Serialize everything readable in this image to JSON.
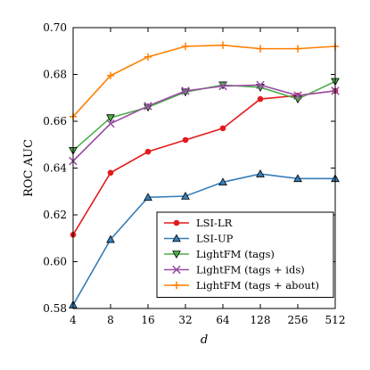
{
  "chart_data": {
    "type": "line",
    "title": "",
    "xlabel": "d",
    "ylabel": "ROC AUC",
    "x": [
      4,
      8,
      16,
      32,
      64,
      128,
      256,
      512
    ],
    "xscale": "log2",
    "xlim": [
      4,
      512
    ],
    "ylim": [
      0.58,
      0.7
    ],
    "yticks": [
      "0.58",
      "0.60",
      "0.62",
      "0.64",
      "0.66",
      "0.68",
      "0.70"
    ],
    "xticks": [
      "4",
      "8",
      "16",
      "32",
      "64",
      "128",
      "256",
      "512"
    ],
    "grid": false,
    "legend_position": "lower-right",
    "series": [
      {
        "name": "LSI-LR",
        "color": "#e41a1c",
        "marker": "circle",
        "values": [
          0.6115,
          0.638,
          0.647,
          0.652,
          0.657,
          0.6695,
          0.671,
          0.673
        ]
      },
      {
        "name": "LSI-UP",
        "color": "#377eb8",
        "marker": "triangle-up",
        "values": [
          0.5815,
          0.6095,
          0.6275,
          0.628,
          0.634,
          0.6375,
          0.6355,
          0.6355
        ]
      },
      {
        "name": "LightFM (tags)",
        "color": "#4daf4a",
        "marker": "triangle-down",
        "values": [
          0.6475,
          0.6615,
          0.666,
          0.6725,
          0.6755,
          0.6745,
          0.6695,
          0.677
        ]
      },
      {
        "name": "LightFM (tags + ids)",
        "color": "#984ea3",
        "marker": "x",
        "values": [
          0.643,
          0.659,
          0.6665,
          0.673,
          0.675,
          0.6755,
          0.671,
          0.673
        ]
      },
      {
        "name": "LightFM (tags + about)",
        "color": "#ff7f00",
        "marker": "plus",
        "values": [
          0.662,
          0.6795,
          0.6875,
          0.692,
          0.6925,
          0.691,
          0.691,
          0.692
        ]
      }
    ]
  }
}
